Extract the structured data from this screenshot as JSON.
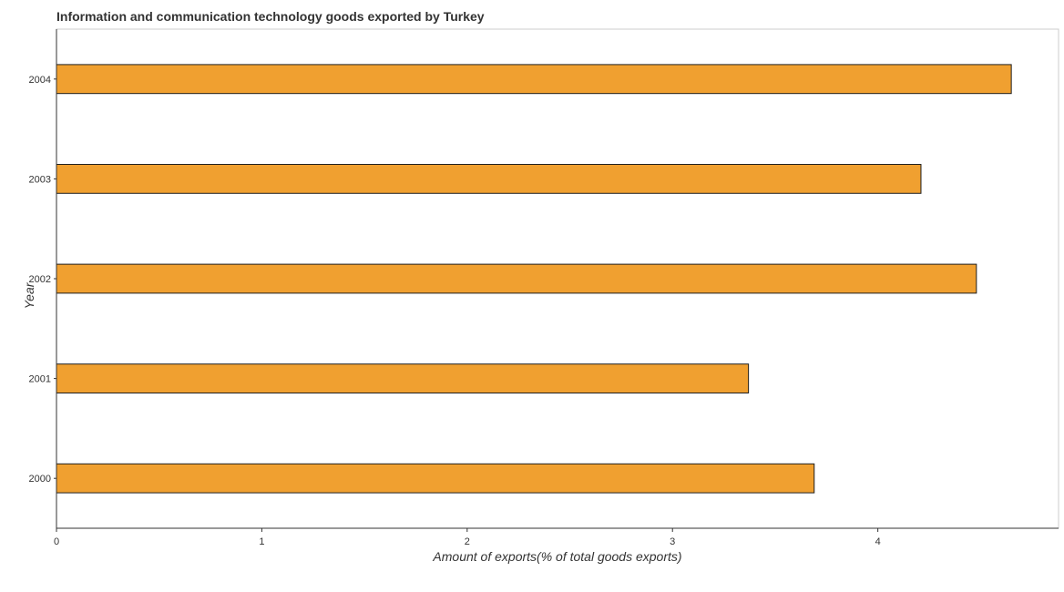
{
  "chart_data": {
    "type": "bar",
    "orientation": "horizontal",
    "title": "Information and communication technology goods exported by Turkey",
    "xlabel": "Amount of exports(% of total goods exports)",
    "ylabel": "Year",
    "categories": [
      "2000",
      "2001",
      "2002",
      "2003",
      "2004"
    ],
    "values": [
      3.69,
      3.37,
      4.48,
      4.21,
      4.65
    ],
    "xlim": [
      0,
      4.88
    ],
    "xticks": [
      0,
      1,
      2,
      3,
      4
    ],
    "grid": false,
    "legend": "none",
    "bar_color": "#1f1f1f",
    "bar_fill": "#f0a030"
  }
}
